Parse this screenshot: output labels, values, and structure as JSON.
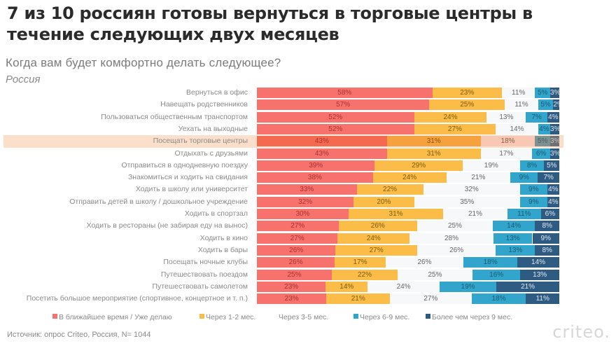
{
  "header": {
    "title": "7 из 10 россиян готовы вернуться в торговые центры в течение следующих двух месяцев",
    "subtitle": "Когда вам будет комфортно делать следующее?",
    "region": "Россия"
  },
  "footer": {
    "source": "Источник: опрос Criteo, Россия, N= 1044",
    "logo": "criteo."
  },
  "colors": {
    "normal": [
      "#f7716d",
      "#fbbd47",
      "#f7f8fa",
      "#31a5cb",
      "#2e5b82"
    ],
    "normal_text": [
      "#a8322f",
      "#7a5a12",
      "#666666",
      "#1c5a72",
      "#dfe8f0"
    ],
    "highlight": [
      "#f4694f",
      "#f5a13d",
      "#f7c9b4",
      "#7c9192",
      "#6f7072"
    ],
    "highlight_text": [
      "#a8322f",
      "#8a5212",
      "#8c5a48",
      "#4c5e60",
      "#c9c9c9"
    ],
    "highlight_band": "#fbdfcb"
  },
  "chart_data": {
    "type": "bar",
    "orientation": "horizontal",
    "stacked": true,
    "normalized_percent": true,
    "title": "7 из 10 россиян готовы вернуться в торговые центры в течение следующих двух месяцев",
    "subtitle": "Когда вам будет комфортно делать следующее?",
    "xlabel": "",
    "ylabel": "",
    "xlim": [
      0,
      100
    ],
    "grid": false,
    "legend_position": "bottom",
    "highlighted_category": "Посещать торговые центры",
    "categories": [
      "Вернуться в офис",
      "Навещать родственников",
      "Пользоваться общественным транспортом",
      "Уехать на выходные",
      "Посещать торговые центры",
      "Отдыхать с друзьями",
      "Отправиться в однодневную поездку",
      "Знакомиться и ходить на свидания",
      "Ходить в школу или университет",
      "Отправить детей в школу / дошкольное учреждение",
      "Ходить в спортзал",
      "Ходить в рестораны (не забирая еду на вынос)",
      "Ходить в кино",
      "Ходить в бары",
      "Посещать ночные клубы",
      "Путешествовать поездом",
      "Путешествовать самолетом",
      "Посетить большое мероприятие (спортивное, концертное и т. п.)"
    ],
    "series": [
      {
        "name": "В ближайшее время / Уже делаю",
        "values": [
          58,
          57,
          52,
          52,
          43,
          43,
          39,
          38,
          33,
          32,
          30,
          27,
          27,
          26,
          26,
          25,
          23,
          23
        ]
      },
      {
        "name": "Через 1-2 мес.",
        "values": [
          23,
          25,
          24,
          27,
          31,
          31,
          29,
          24,
          22,
          20,
          31,
          26,
          24,
          27,
          17,
          22,
          14,
          21
        ]
      },
      {
        "name": "Через 3-5 мес.",
        "values": [
          11,
          11,
          13,
          14,
          18,
          17,
          19,
          21,
          32,
          35,
          21,
          25,
          28,
          26,
          26,
          25,
          24,
          27
        ]
      },
      {
        "name": "Через 6-9 мес.",
        "values": [
          5,
          5,
          7,
          4,
          5,
          6,
          8,
          9,
          9,
          9,
          11,
          14,
          13,
          13,
          18,
          16,
          19,
          18
        ]
      },
      {
        "name": "Более чем через 9 мес.",
        "values": [
          3,
          2,
          4,
          3,
          3,
          3,
          5,
          7,
          4,
          4,
          6,
          8,
          9,
          8,
          14,
          13,
          21,
          11
        ]
      }
    ]
  }
}
